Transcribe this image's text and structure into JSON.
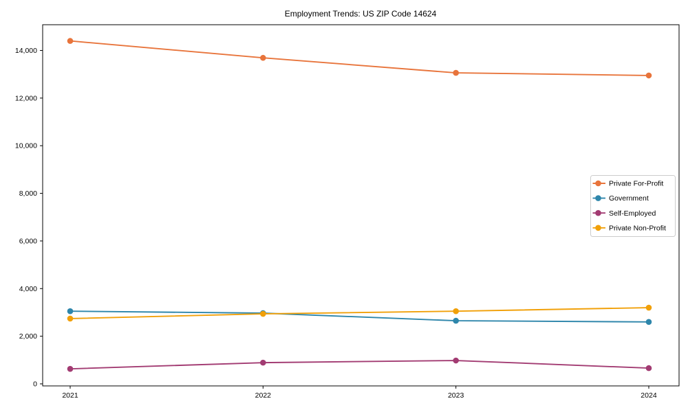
{
  "figure": {
    "title": "Employment Trends: US ZIP Code 14624"
  },
  "chart_data": {
    "type": "line",
    "title": "Employment Trends: US ZIP Code 14624",
    "xlabel": "",
    "ylabel": "",
    "x": [
      "2021",
      "2022",
      "2023",
      "2024"
    ],
    "series": [
      {
        "name": "Private For-Profit",
        "color": "#e8743b",
        "values": [
          14400,
          13690,
          13060,
          12950
        ]
      },
      {
        "name": "Government",
        "color": "#2e86ab",
        "values": [
          3050,
          2970,
          2650,
          2600
        ]
      },
      {
        "name": "Self-Employed",
        "color": "#a23b72",
        "values": [
          630,
          890,
          980,
          660
        ]
      },
      {
        "name": "Private Non-Profit",
        "color": "#f1a009",
        "values": [
          2740,
          2940,
          3050,
          3200
        ]
      }
    ],
    "yticks": {
      "values": [
        0,
        2000,
        4000,
        6000,
        8000,
        10000,
        12000,
        14000
      ],
      "labels": [
        "0",
        "2,000",
        "4,000",
        "6,000",
        "8,000",
        "10,000",
        "12,000",
        "14,000"
      ]
    },
    "ylim": [
      -90,
      15080
    ],
    "legend_position": "center right",
    "grid": false,
    "marker": "circle",
    "axis_color": "#000000",
    "legend_border_color": "#cccccc",
    "background_color": "#ffffff"
  }
}
